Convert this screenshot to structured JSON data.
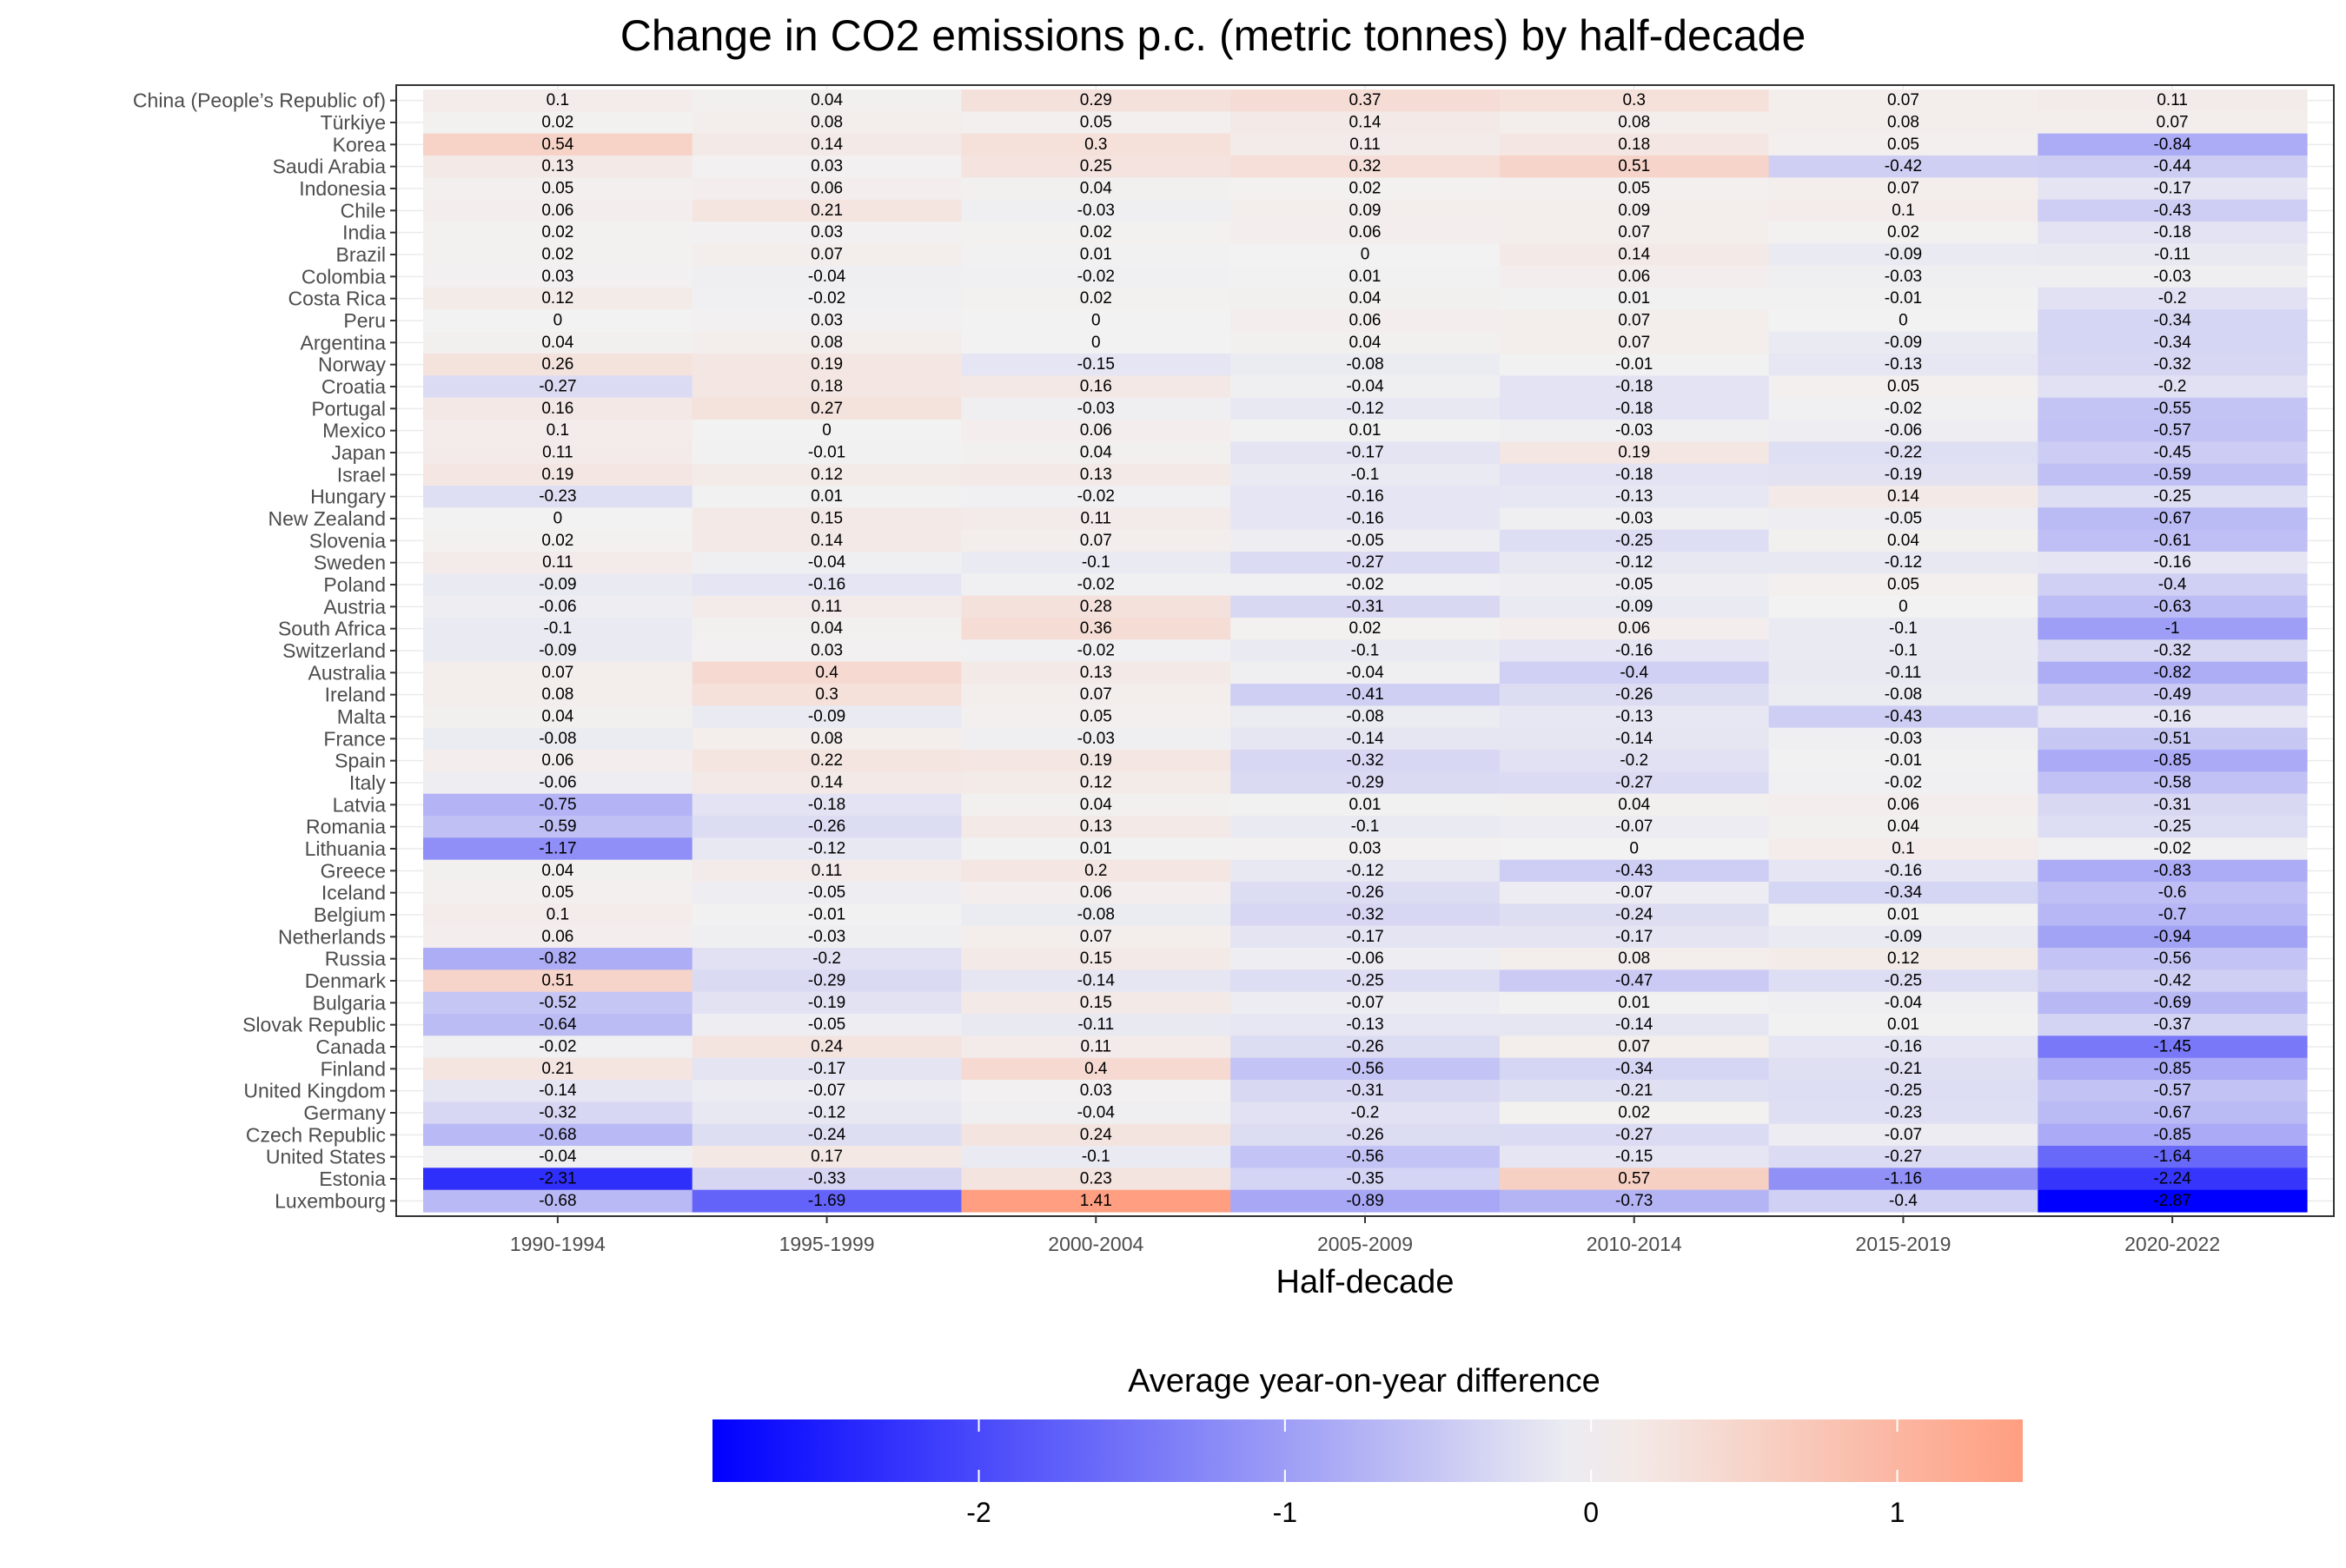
{
  "chart_data": {
    "type": "heatmap",
    "title": "Change in CO2 emissions p.c. (metric tonnes) by half-decade",
    "xlabel": "Half-decade",
    "ylabel": "",
    "columns": [
      "1990-1994",
      "1995-1999",
      "2000-2004",
      "2005-2009",
      "2010-2014",
      "2015-2019",
      "2020-2022"
    ],
    "rows": [
      "China (People’s Republic of)",
      "Türkiye",
      "Korea",
      "Saudi Arabia",
      "Indonesia",
      "Chile",
      "India",
      "Brazil",
      "Colombia",
      "Costa Rica",
      "Peru",
      "Argentina",
      "Norway",
      "Croatia",
      "Portugal",
      "Mexico",
      "Japan",
      "Israel",
      "Hungary",
      "New Zealand",
      "Slovenia",
      "Sweden",
      "Poland",
      "Austria",
      "South Africa",
      "Switzerland",
      "Australia",
      "Ireland",
      "Malta",
      "France",
      "Spain",
      "Italy",
      "Latvia",
      "Romania",
      "Lithuania",
      "Greece",
      "Iceland",
      "Belgium",
      "Netherlands",
      "Russia",
      "Denmark",
      "Bulgaria",
      "Slovak Republic",
      "Canada",
      "Finland",
      "United Kingdom",
      "Germany",
      "Czech Republic",
      "United States",
      "Estonia",
      "Luxembourg"
    ],
    "values": [
      [
        0.1,
        0.04,
        0.29,
        0.37,
        0.3,
        0.07,
        0.11
      ],
      [
        0.02,
        0.08,
        0.05,
        0.14,
        0.08,
        0.08,
        0.07
      ],
      [
        0.54,
        0.14,
        0.3,
        0.11,
        0.18,
        0.05,
        -0.84
      ],
      [
        0.13,
        0.03,
        0.25,
        0.32,
        0.51,
        -0.42,
        -0.44
      ],
      [
        0.05,
        0.06,
        0.04,
        0.02,
        0.05,
        0.07,
        -0.17
      ],
      [
        0.06,
        0.21,
        -0.03,
        0.09,
        0.09,
        0.1,
        -0.43
      ],
      [
        0.02,
        0.03,
        0.02,
        0.06,
        0.07,
        0.02,
        -0.18
      ],
      [
        0.02,
        0.07,
        0.01,
        0,
        0.14,
        -0.09,
        -0.11
      ],
      [
        0.03,
        -0.04,
        -0.02,
        0.01,
        0.06,
        -0.03,
        -0.03
      ],
      [
        0.12,
        -0.02,
        0.02,
        0.04,
        0.01,
        -0.01,
        -0.2
      ],
      [
        0,
        0.03,
        0,
        0.06,
        0.07,
        0,
        -0.34
      ],
      [
        0.04,
        0.08,
        0,
        0.04,
        0.07,
        -0.09,
        -0.34
      ],
      [
        0.26,
        0.19,
        -0.15,
        -0.08,
        -0.01,
        -0.13,
        -0.32
      ],
      [
        -0.27,
        0.18,
        0.16,
        -0.04,
        -0.18,
        0.05,
        -0.2
      ],
      [
        0.16,
        0.27,
        -0.03,
        -0.12,
        -0.18,
        -0.02,
        -0.55
      ],
      [
        0.1,
        0,
        0.06,
        0.01,
        -0.03,
        -0.06,
        -0.57
      ],
      [
        0.11,
        -0.01,
        0.04,
        -0.17,
        0.19,
        -0.22,
        -0.45
      ],
      [
        0.19,
        0.12,
        0.13,
        -0.1,
        -0.18,
        -0.19,
        -0.59
      ],
      [
        -0.23,
        0.01,
        -0.02,
        -0.16,
        -0.13,
        0.14,
        -0.25
      ],
      [
        0,
        0.15,
        0.11,
        -0.16,
        -0.03,
        -0.05,
        -0.67
      ],
      [
        0.02,
        0.14,
        0.07,
        -0.05,
        -0.25,
        0.04,
        -0.61
      ],
      [
        0.11,
        -0.04,
        -0.1,
        -0.27,
        -0.12,
        -0.12,
        -0.16
      ],
      [
        -0.09,
        -0.16,
        -0.02,
        -0.02,
        -0.05,
        0.05,
        -0.4
      ],
      [
        -0.06,
        0.11,
        0.28,
        -0.31,
        -0.09,
        0,
        -0.63
      ],
      [
        -0.1,
        0.04,
        0.36,
        0.02,
        0.06,
        -0.1,
        -1
      ],
      [
        -0.09,
        0.03,
        -0.02,
        -0.1,
        -0.16,
        -0.1,
        -0.32
      ],
      [
        0.07,
        0.4,
        0.13,
        -0.04,
        -0.4,
        -0.11,
        -0.82
      ],
      [
        0.08,
        0.3,
        0.07,
        -0.41,
        -0.26,
        -0.08,
        -0.49
      ],
      [
        0.04,
        -0.09,
        0.05,
        -0.08,
        -0.13,
        -0.43,
        -0.16
      ],
      [
        -0.08,
        0.08,
        -0.03,
        -0.14,
        -0.14,
        -0.03,
        -0.51
      ],
      [
        0.06,
        0.22,
        0.19,
        -0.32,
        -0.2,
        -0.01,
        -0.85
      ],
      [
        -0.06,
        0.14,
        0.12,
        -0.29,
        -0.27,
        -0.02,
        -0.58
      ],
      [
        -0.75,
        -0.18,
        0.04,
        0.01,
        0.04,
        0.06,
        -0.31
      ],
      [
        -0.59,
        -0.26,
        0.13,
        -0.1,
        -0.07,
        0.04,
        -0.25
      ],
      [
        -1.17,
        -0.12,
        0.01,
        0.03,
        0,
        0.1,
        -0.02
      ],
      [
        0.04,
        0.11,
        0.2,
        -0.12,
        -0.43,
        -0.16,
        -0.83
      ],
      [
        0.05,
        -0.05,
        0.06,
        -0.26,
        -0.07,
        -0.34,
        -0.6
      ],
      [
        0.1,
        -0.01,
        -0.08,
        -0.32,
        -0.24,
        0.01,
        -0.7
      ],
      [
        0.06,
        -0.03,
        0.07,
        -0.17,
        -0.17,
        -0.09,
        -0.94
      ],
      [
        -0.82,
        -0.2,
        0.15,
        -0.06,
        0.08,
        0.12,
        -0.56
      ],
      [
        0.51,
        -0.29,
        -0.14,
        -0.25,
        -0.47,
        -0.25,
        -0.42
      ],
      [
        -0.52,
        -0.19,
        0.15,
        -0.07,
        0.01,
        -0.04,
        -0.69
      ],
      [
        -0.64,
        -0.05,
        -0.11,
        -0.13,
        -0.14,
        0.01,
        -0.37
      ],
      [
        -0.02,
        0.24,
        0.11,
        -0.26,
        0.07,
        -0.16,
        -1.45
      ],
      [
        0.21,
        -0.17,
        0.4,
        -0.56,
        -0.34,
        -0.21,
        -0.85
      ],
      [
        -0.14,
        -0.07,
        0.03,
        -0.31,
        -0.21,
        -0.25,
        -0.57
      ],
      [
        -0.32,
        -0.12,
        -0.04,
        -0.2,
        0.02,
        -0.23,
        -0.67
      ],
      [
        -0.68,
        -0.24,
        0.24,
        -0.26,
        -0.27,
        -0.07,
        -0.85
      ],
      [
        -0.04,
        0.17,
        -0.1,
        -0.56,
        -0.15,
        -0.27,
        -1.64
      ],
      [
        -2.31,
        -0.33,
        0.23,
        -0.35,
        0.57,
        -1.16,
        -2.24
      ],
      [
        -0.68,
        -1.69,
        1.41,
        -0.89,
        -0.73,
        -0.4,
        -2.87
      ]
    ],
    "color_scale": {
      "low": "#0000FF",
      "mid": "#F2F2F2",
      "high": "#FF9E80",
      "midpoint": 0,
      "min": -2.87,
      "max": 1.41
    },
    "legend": {
      "title": "Average year-on-year difference",
      "ticks": [
        -2,
        -1,
        0,
        1
      ],
      "position": "bottom"
    },
    "grid": true
  }
}
